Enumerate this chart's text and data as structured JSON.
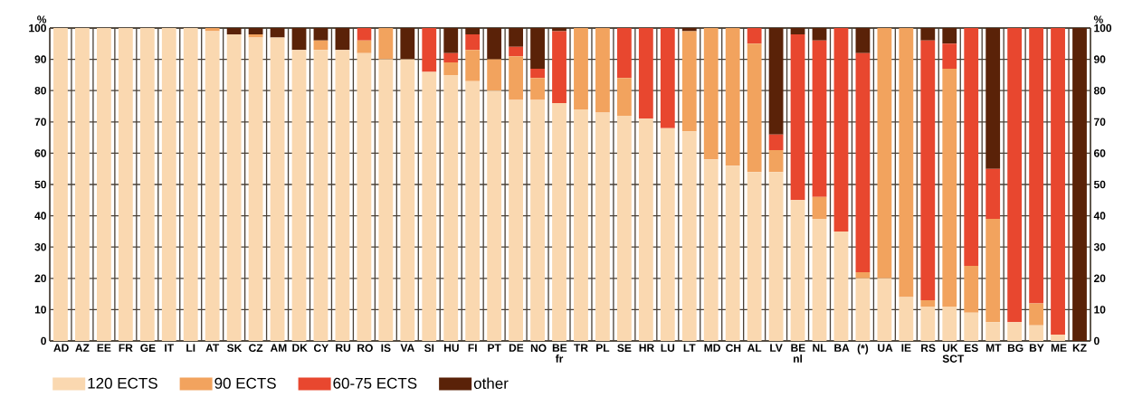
{
  "chart_data": {
    "type": "bar",
    "stacked": true,
    "ylabel": "%",
    "y2label": "%",
    "categories": [
      "AD",
      "AZ",
      "EE",
      "FR",
      "GE",
      "IT",
      "LI",
      "AT",
      "SK",
      "CZ",
      "AM",
      "DK",
      "CY",
      "RU",
      "RO",
      "IS",
      "VA",
      "SI",
      "HU",
      "FI",
      "PT",
      "DE",
      "NO",
      "BE fr",
      "TR",
      "PL",
      "SE",
      "HR",
      "LU",
      "LT",
      "MD",
      "CH",
      "AL",
      "LV",
      "BE nl",
      "NL",
      "BA",
      "(*)",
      "UA",
      "IE",
      "RS",
      "UK SCT",
      "ES",
      "MT",
      "BG",
      "BY",
      "ME",
      "KZ"
    ],
    "series": [
      {
        "name": "120 ECTS",
        "color": "#fad8b0",
        "values": [
          100,
          100,
          100,
          100,
          100,
          100,
          100,
          99,
          98,
          97,
          97,
          93,
          93,
          93,
          92,
          90,
          90,
          86,
          85,
          83,
          80,
          77,
          77,
          76,
          74,
          73,
          72,
          71,
          68,
          67,
          58,
          56,
          54,
          54,
          45,
          39,
          35,
          20,
          20,
          14,
          11,
          11,
          9,
          6,
          6,
          5,
          2,
          0
        ]
      },
      {
        "name": "90 ECTS",
        "color": "#f2a35e",
        "values": [
          0,
          0,
          0,
          0,
          0,
          0,
          0,
          1,
          0,
          1,
          0,
          0,
          3,
          0,
          4,
          10,
          0,
          0,
          4,
          10,
          10,
          14,
          7,
          0,
          26,
          27,
          12,
          0,
          0,
          32,
          42,
          44,
          41,
          7,
          0,
          7,
          0,
          2,
          80,
          86,
          2,
          76,
          15,
          33,
          0,
          7,
          0,
          0
        ]
      },
      {
        "name": "60-75 ECTS",
        "color": "#e8472f",
        "values": [
          0,
          0,
          0,
          0,
          0,
          0,
          0,
          0,
          0,
          0,
          0,
          0,
          0,
          0,
          4,
          0,
          0,
          14,
          3,
          5,
          0,
          3,
          3,
          23,
          0,
          0,
          16,
          29,
          32,
          0,
          0,
          0,
          5,
          5,
          53,
          50,
          65,
          70,
          0,
          0,
          83,
          8,
          76,
          16,
          94,
          88,
          98,
          0
        ]
      },
      {
        "name": "other",
        "color": "#5a2208",
        "values": [
          0,
          0,
          0,
          0,
          0,
          0,
          0,
          0,
          2,
          2,
          3,
          7,
          4,
          7,
          0,
          0,
          10,
          0,
          8,
          2,
          10,
          6,
          13,
          1,
          0,
          0,
          0,
          0,
          0,
          1,
          0,
          0,
          0,
          34,
          2,
          4,
          0,
          8,
          0,
          0,
          4,
          5,
          0,
          45,
          0,
          0,
          0,
          100
        ]
      }
    ],
    "ylim": [
      0,
      100
    ],
    "yticks": [
      0,
      10,
      20,
      30,
      40,
      50,
      60,
      70,
      80,
      90,
      100
    ],
    "y2lim": [
      0,
      100
    ],
    "y2ticks": [
      0,
      10,
      20,
      30,
      40,
      50,
      60,
      70,
      80,
      90,
      100
    ],
    "grid": "y",
    "legend": "bottom"
  }
}
